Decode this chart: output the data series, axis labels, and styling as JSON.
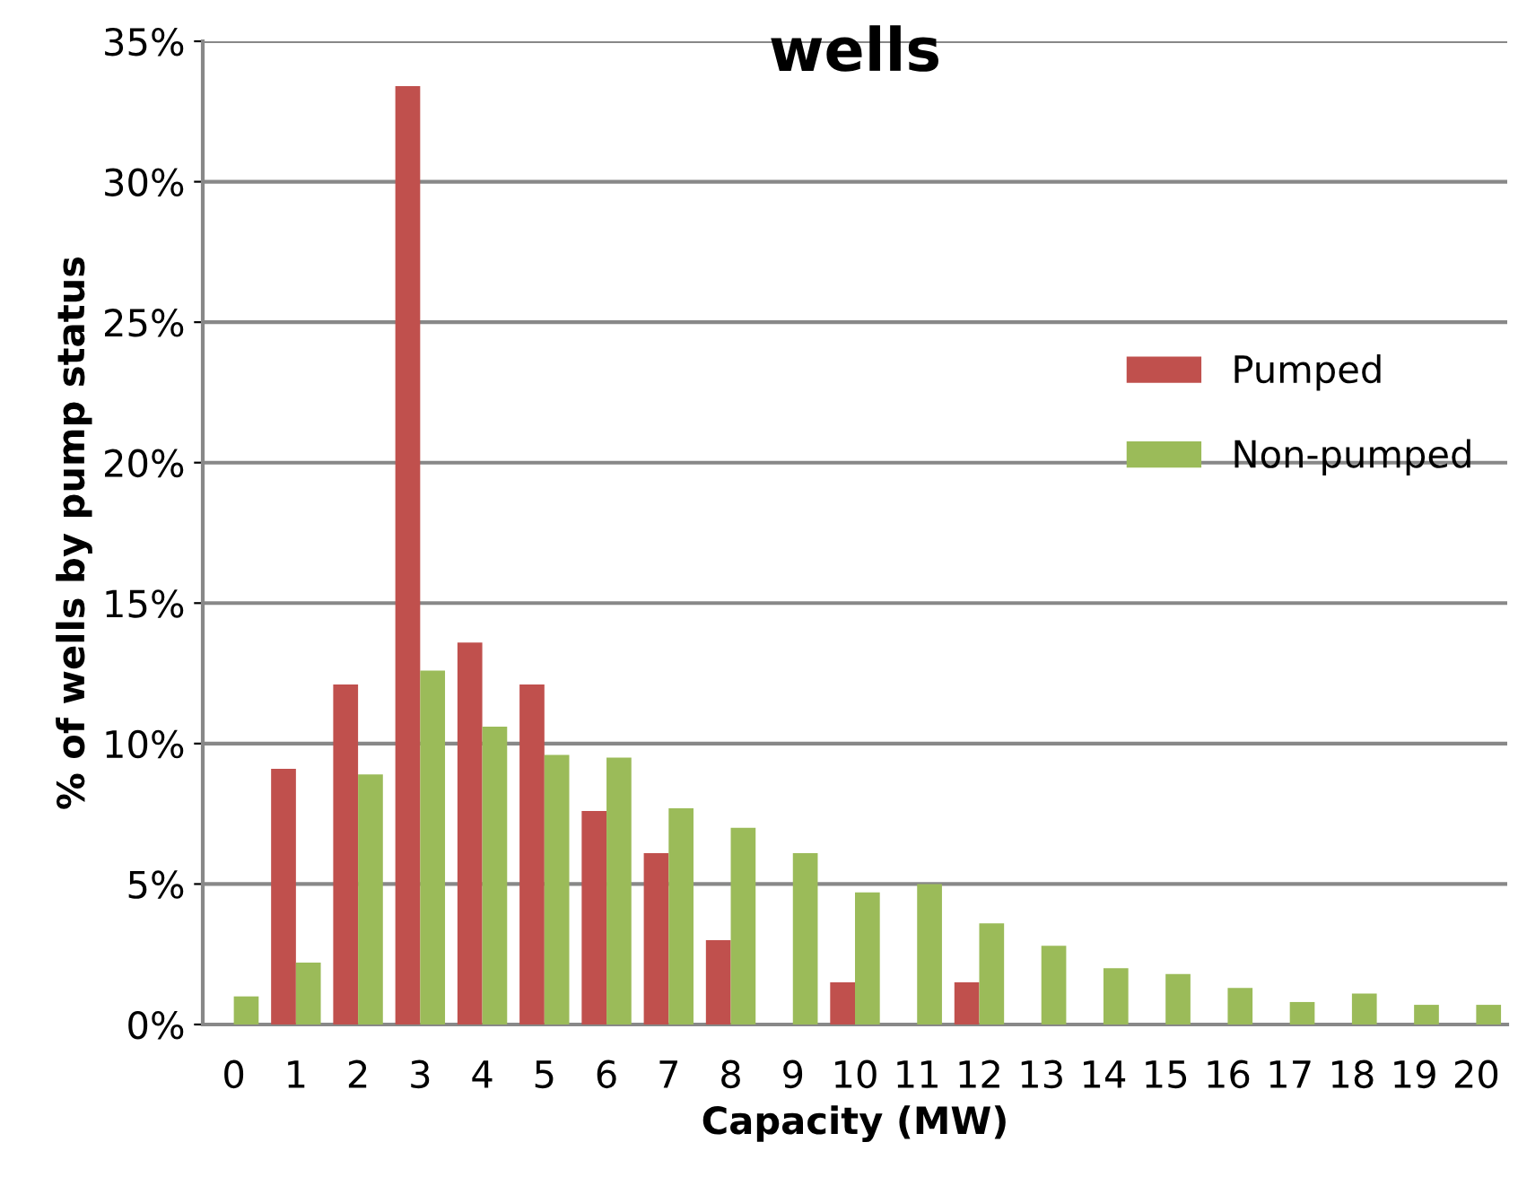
{
  "chart_data": {
    "type": "bar",
    "title": "wells",
    "xlabel": "Capacity (MW)",
    "ylabel": "% of wells by pump status",
    "categories": [
      "0",
      "1",
      "2",
      "3",
      "4",
      "5",
      "6",
      "7",
      "8",
      "9",
      "10",
      "11",
      "12",
      "13",
      "14",
      "15",
      "16",
      "17",
      "18",
      "19",
      "20"
    ],
    "series": [
      {
        "name": "Pumped",
        "color": "#c0504d",
        "values": [
          0,
          9.1,
          12.1,
          33.4,
          13.6,
          12.1,
          7.6,
          6.1,
          3.0,
          0,
          1.5,
          0,
          1.5,
          0,
          0,
          0,
          0,
          0,
          0,
          0,
          0
        ]
      },
      {
        "name": "Non-pumped",
        "color": "#9bbb59",
        "values": [
          1.0,
          2.2,
          8.9,
          12.6,
          10.6,
          9.6,
          9.5,
          7.7,
          7.0,
          6.1,
          4.7,
          5.0,
          3.6,
          2.8,
          2.0,
          1.8,
          1.3,
          0.8,
          1.1,
          0.7,
          0.7
        ]
      }
    ],
    "ylim": [
      0,
      35
    ],
    "yticks": [
      {
        "value": 0,
        "label": "0%"
      },
      {
        "value": 5,
        "label": "5%"
      },
      {
        "value": 10,
        "label": "10%"
      },
      {
        "value": 15,
        "label": "15%"
      },
      {
        "value": 20,
        "label": "20%"
      },
      {
        "value": 25,
        "label": "25%"
      },
      {
        "value": 30,
        "label": "30%"
      },
      {
        "value": 35,
        "label": "35%"
      }
    ],
    "grid": "y",
    "legend": "right"
  }
}
